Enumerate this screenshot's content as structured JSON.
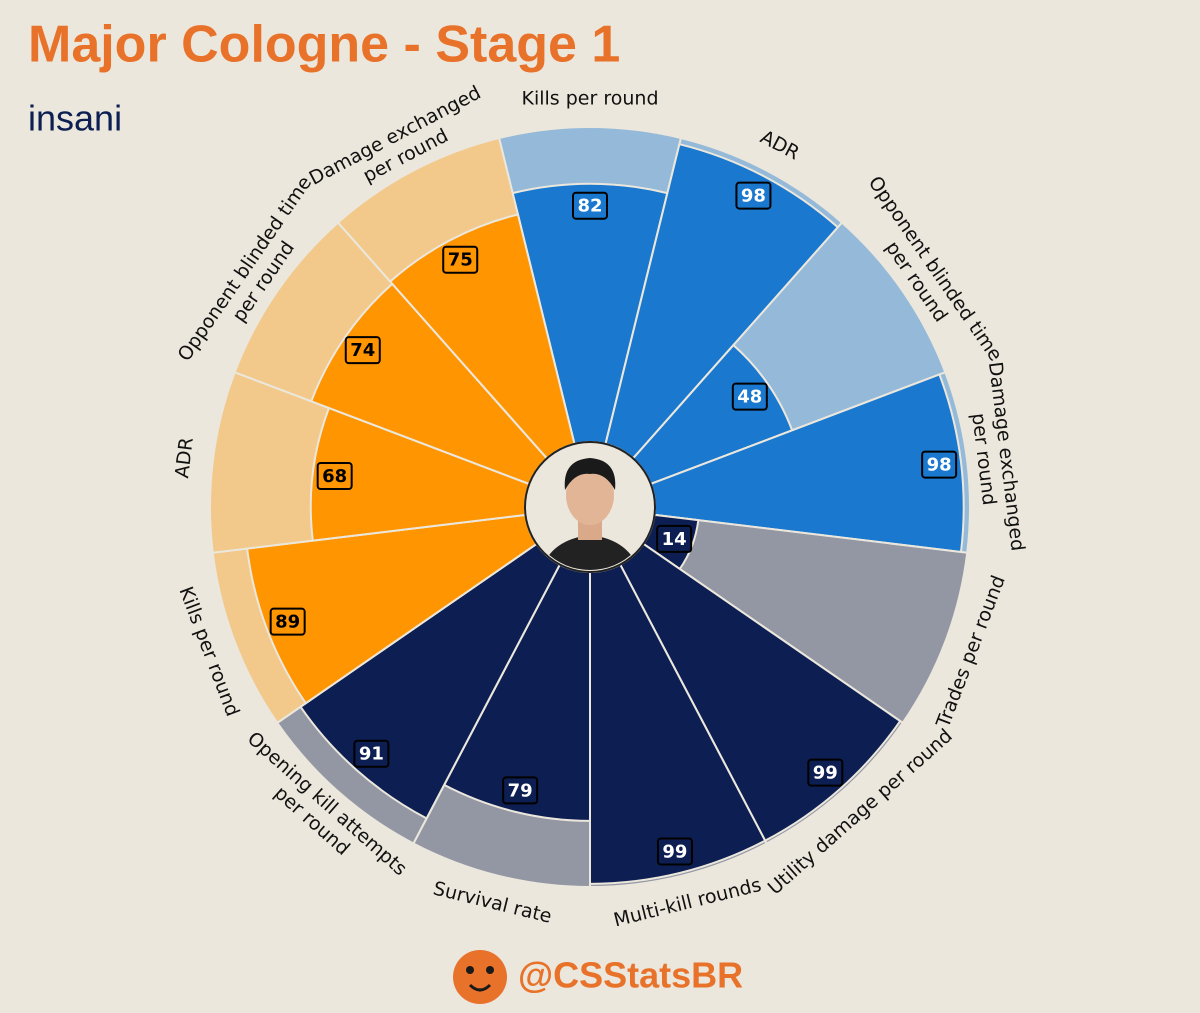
{
  "chart_data": {
    "type": "pizza",
    "title": "Major Cologne - Stage 1",
    "subtitle": "insani",
    "footer": "@CSStatsBR",
    "categories": [
      "Kills per round",
      "ADR",
      "Opponent blinded time\nper round",
      "Damage exchanged\nper round",
      "Trades per round",
      "Utility damage per round",
      "Multi-kill rounds",
      "Survival rate",
      "Opening kill attempts\nper round",
      "Kills per round",
      "ADR",
      "Opponent blinded time\nper round",
      "Damage exchanged\nper round"
    ],
    "values": [
      82,
      98,
      48,
      98,
      14,
      99,
      99,
      79,
      91,
      89,
      68,
      74,
      75
    ],
    "colors": [
      "#1a78cf",
      "#1a78cf",
      "#1a78cf",
      "#1a78cf",
      "#0d1f52",
      "#0d1f52",
      "#0d1f52",
      "#0d1f52",
      "#0d1f52",
      "#ff9500",
      "#ff9500",
      "#ff9500",
      "#ff9500"
    ],
    "background_colors": [
      "#95bad9",
      "#95bad9",
      "#95bad9",
      "#95bad9",
      "#9397a4",
      "#9397a4",
      "#9397a4",
      "#9397a4",
      "#9397a4",
      "#f2c98a",
      "#f2c98a",
      "#f2c98a",
      "#f2c98a"
    ],
    "value_text_colors": [
      "#ffffff",
      "#ffffff",
      "#ffffff",
      "#ffffff",
      "#ffffff",
      "#ffffff",
      "#ffffff",
      "#ffffff",
      "#ffffff",
      "#000000",
      "#000000",
      "#000000",
      "#000000"
    ],
    "ylim": [
      0,
      100
    ]
  }
}
